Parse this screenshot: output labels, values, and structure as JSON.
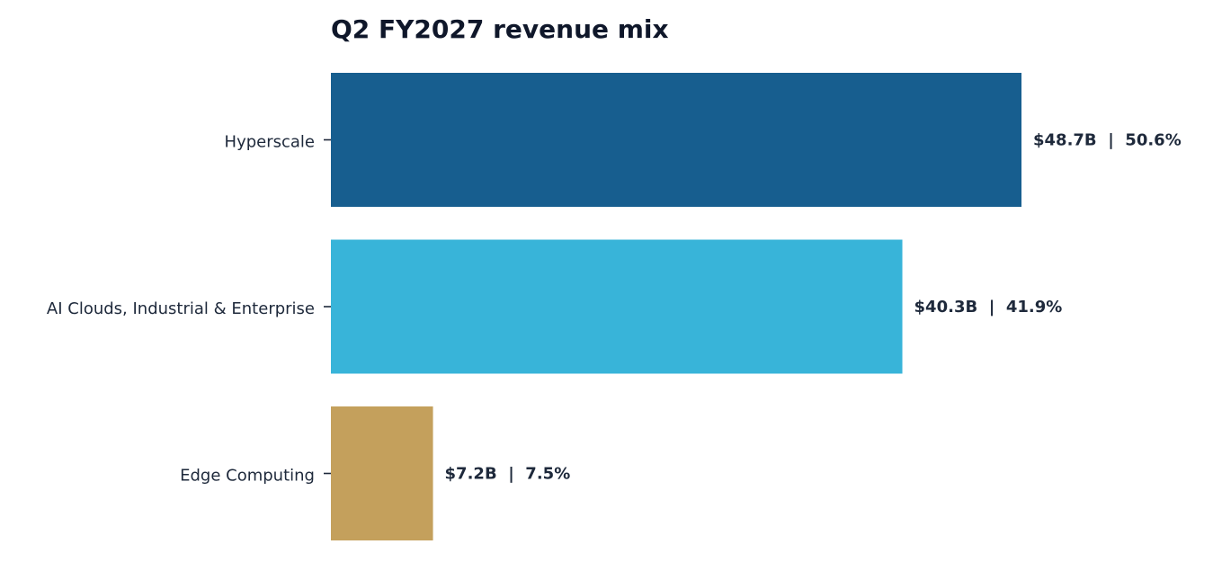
{
  "chart_data": {
    "type": "bar",
    "orientation": "horizontal",
    "title": "Q2 FY2027 revenue mix",
    "xlabel": "",
    "ylabel": "",
    "grid": false,
    "categories": [
      "Hyperscale",
      "AI Clouds, Industrial & Enterprise",
      "Edge Computing"
    ],
    "values": [
      48.7,
      40.3,
      7.2
    ],
    "shares": [
      50.6,
      41.9,
      7.5
    ],
    "value_labels": [
      "$48.7B  |  50.6%",
      "$40.3B  |  41.9%",
      "$7.2B  |  7.5%"
    ],
    "colors": [
      "#175e8f",
      "#38b4d9",
      "#c4a05c"
    ]
  }
}
